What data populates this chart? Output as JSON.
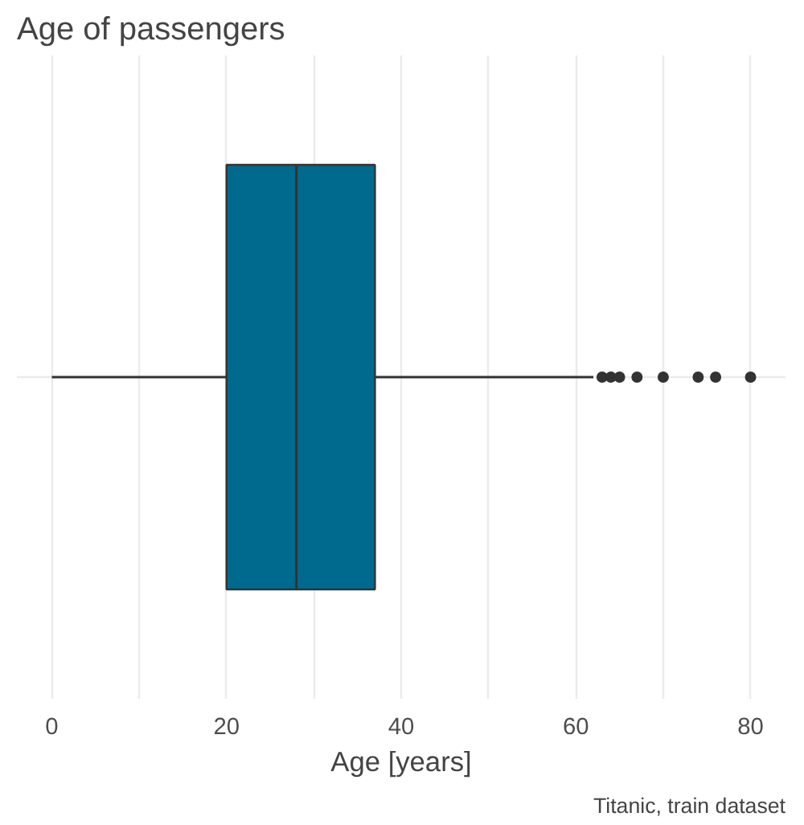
{
  "chart_data": {
    "type": "box",
    "title": "Age of passengers",
    "xlabel": "Age [years]",
    "annotations": [
      "Titanic, train dataset"
    ],
    "orientation": "horizontal",
    "categories": [
      null
    ],
    "series": [
      {
        "color": "#006a8e",
        "boxes": [
          {
            "low": 0,
            "q1": 20,
            "median": 28,
            "q3": 37,
            "high": 62,
            "outliers": [
              63,
              64,
              65,
              67,
              70,
              74,
              76,
              80
            ]
          }
        ]
      }
    ],
    "xlim": [
      -4,
      84
    ],
    "xticks": [
      0,
      {
        "value": 10,
        "label": null
      },
      20,
      {
        "value": 30,
        "label": null
      },
      40,
      {
        "value": 50,
        "label": null
      },
      60,
      {
        "value": 70,
        "label": null
      },
      80
    ],
    "grid": true
  }
}
